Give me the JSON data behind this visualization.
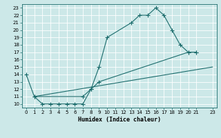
{
  "xlabel": "Humidex (Indice chaleur)",
  "ylabel": "",
  "xlim": [
    -0.5,
    23.5
  ],
  "ylim": [
    9.5,
    23.5
  ],
  "yticks": [
    10,
    11,
    12,
    13,
    14,
    15,
    16,
    17,
    18,
    19,
    20,
    21,
    22,
    23
  ],
  "xticks": [
    0,
    1,
    2,
    3,
    4,
    5,
    6,
    7,
    8,
    9,
    10,
    11,
    12,
    13,
    14,
    15,
    16,
    17,
    18,
    19,
    20,
    21,
    23
  ],
  "bg_color": "#cce8e8",
  "grid_color": "#ffffff",
  "line_color": "#1a6b6b",
  "line1_x": [
    0,
    1,
    2,
    3,
    4,
    5,
    6,
    7,
    8,
    9,
    10,
    13,
    14,
    15,
    16,
    17,
    18,
    19,
    20,
    21
  ],
  "line1_y": [
    14,
    11,
    10,
    10,
    10,
    10,
    10,
    10,
    12,
    15,
    19,
    21,
    22,
    22,
    23,
    22,
    20,
    18,
    17,
    17
  ],
  "line2_x": [
    1,
    7,
    8,
    9,
    20,
    21
  ],
  "line2_y": [
    11,
    11,
    12,
    13,
    17,
    17
  ],
  "line3_x": [
    1,
    23
  ],
  "line3_y": [
    11,
    15
  ],
  "marker": "+",
  "markersize": 4,
  "linewidth": 0.8
}
